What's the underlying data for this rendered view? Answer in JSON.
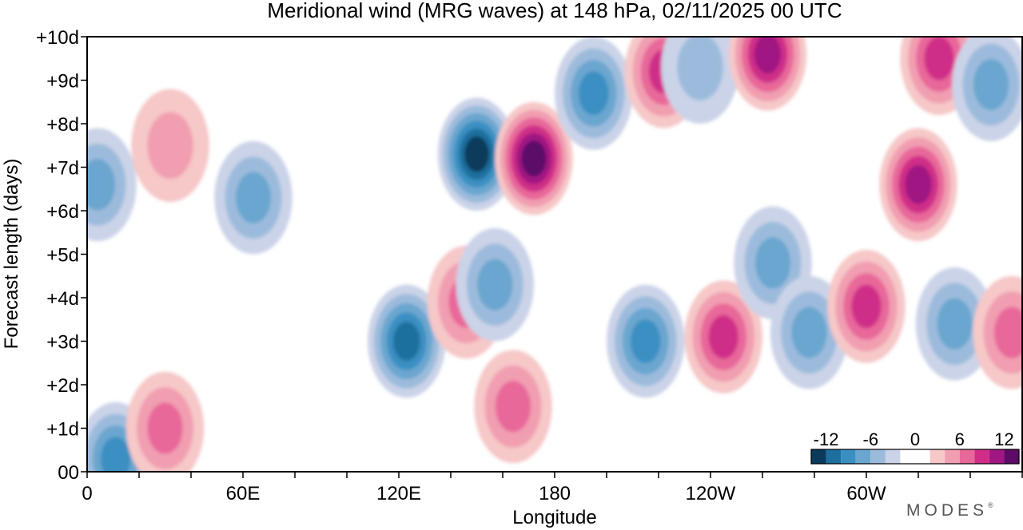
{
  "chart_data": {
    "type": "heatmap",
    "title": "Meridional wind (MRG waves) at  148 hPa,  02/11/2025  00 UTC",
    "xlabel": "Longitude",
    "ylabel": "Forecast length (days)",
    "x_ticks": [
      "0",
      "60E",
      "120E",
      "180",
      "120W",
      "60W"
    ],
    "x_tick_values": [
      0,
      60,
      120,
      180,
      240,
      300
    ],
    "x_range": [
      0,
      360
    ],
    "y_ticks": [
      "00",
      "+1d",
      "+2d",
      "+3d",
      "+4d",
      "+5d",
      "+6d",
      "+7d",
      "+8d",
      "+9d",
      "+10d"
    ],
    "y_tick_values": [
      0,
      1,
      2,
      3,
      4,
      5,
      6,
      7,
      8,
      9,
      10
    ],
    "y_range": [
      0,
      10
    ],
    "colorbar": {
      "labels": [
        "-12",
        "-6",
        "0",
        "6",
        "12"
      ],
      "label_values": [
        -12,
        -6,
        0,
        6,
        12
      ],
      "range": [
        -14,
        14
      ],
      "levels": [
        -14,
        -12,
        -10,
        -8,
        -6,
        -4,
        -2,
        2,
        4,
        6,
        8,
        10,
        12,
        14
      ],
      "colors": [
        "#0b3a5c",
        "#1c6f9e",
        "#3a8fc2",
        "#6aa6cf",
        "#9cbbdc",
        "#cbd3e8",
        "#ffffff",
        "#f6c8c8",
        "#f19eb1",
        "#e8689a",
        "#cf2d88",
        "#a01682",
        "#5c0b67"
      ]
    },
    "features": [
      {
        "lon": 4,
        "day": 6.6,
        "value": -8
      },
      {
        "lon": 11,
        "day": 0.3,
        "value": -9
      },
      {
        "lon": 30,
        "day": 1.0,
        "value": 7
      },
      {
        "lon": 32,
        "day": 7.5,
        "value": 5
      },
      {
        "lon": 64,
        "day": 6.3,
        "value": -7
      },
      {
        "lon": 123,
        "day": 3.0,
        "value": -12
      },
      {
        "lon": 146,
        "day": 3.9,
        "value": 8
      },
      {
        "lon": 150,
        "day": 7.3,
        "value": -14
      },
      {
        "lon": 157,
        "day": 4.3,
        "value": -7
      },
      {
        "lon": 164,
        "day": 1.5,
        "value": 8
      },
      {
        "lon": 172,
        "day": 7.2,
        "value": 13
      },
      {
        "lon": 195,
        "day": 8.7,
        "value": -10
      },
      {
        "lon": 215,
        "day": 3.0,
        "value": -10
      },
      {
        "lon": 222,
        "day": 9.2,
        "value": 10
      },
      {
        "lon": 236,
        "day": 9.3,
        "value": -6
      },
      {
        "lon": 245,
        "day": 3.1,
        "value": 9
      },
      {
        "lon": 262,
        "day": 9.6,
        "value": 11
      },
      {
        "lon": 264,
        "day": 4.8,
        "value": -7
      },
      {
        "lon": 278,
        "day": 3.2,
        "value": -8
      },
      {
        "lon": 300,
        "day": 3.8,
        "value": 10
      },
      {
        "lon": 320,
        "day": 6.6,
        "value": 11
      },
      {
        "lon": 328,
        "day": 9.5,
        "value": 10
      },
      {
        "lon": 334,
        "day": 3.4,
        "value": -8
      },
      {
        "lon": 348,
        "day": 8.9,
        "value": -7
      },
      {
        "lon": 356,
        "day": 3.2,
        "value": 8
      }
    ]
  },
  "branding": {
    "logo": "MODES",
    "mark": "®"
  }
}
